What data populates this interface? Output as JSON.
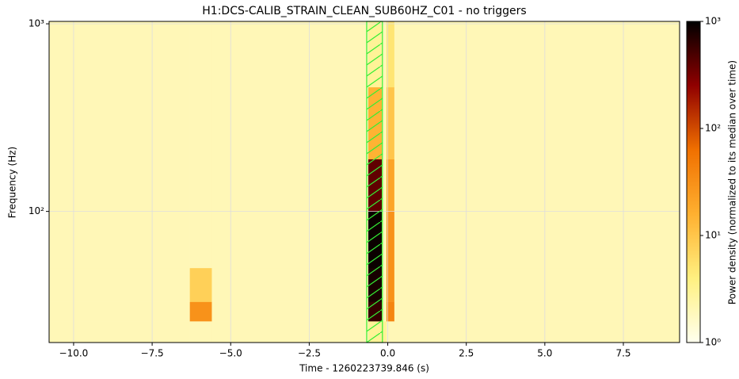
{
  "chart_data": {
    "type": "spectrogram",
    "title": "H1:DCS-CALIB_STRAIN_CLEAN_SUB60HZ_C01 - no triggers",
    "xlabel": "Time - 1260223739.846 (s)",
    "ylabel": "Frequency (Hz)",
    "colorbar_label": "Power density (normalized to its median over time)",
    "xlim": [
      -10.78,
      9.29
    ],
    "xticks": [
      {
        "value": -10,
        "label": "−10.0"
      },
      {
        "value": -7.5,
        "label": "−7.5"
      },
      {
        "value": -5,
        "label": "−5.0"
      },
      {
        "value": -2.5,
        "label": "−2.5"
      },
      {
        "value": 0,
        "label": "0.0"
      },
      {
        "value": 2.5,
        "label": "2.5"
      },
      {
        "value": 5,
        "label": "5.0"
      },
      {
        "value": 7.5,
        "label": "7.5"
      }
    ],
    "ylim": [
      20,
      1030
    ],
    "yscale": "log",
    "yticks": [
      {
        "value": 100,
        "label": "10²"
      },
      {
        "value": 1000,
        "label": "10³"
      }
    ],
    "clim": [
      1,
      1000
    ],
    "cscale": "log",
    "cticks": [
      {
        "value": 1,
        "label": "10⁰"
      },
      {
        "value": 10,
        "label": "10¹"
      },
      {
        "value": 100,
        "label": "10²"
      },
      {
        "value": 1000,
        "label": "10³"
      }
    ],
    "colormap": [
      "#ffffee",
      "#fff080",
      "#ffb030",
      "#f07000",
      "#900000",
      "#000000"
    ],
    "grid": true,
    "x_edges": [
      -10.78,
      -6.3,
      -5.6,
      -0.62,
      -0.19,
      -0.04,
      0.21,
      9.29
    ],
    "y_edges": [
      20,
      26,
      33,
      50,
      100,
      190,
      460,
      1030
    ],
    "z": [
      [
        2,
        2,
        2,
        3,
        3,
        2,
        2
      ],
      [
        2,
        30,
        2,
        600,
        2,
        40,
        2
      ],
      [
        2,
        8,
        2,
        800,
        2,
        30,
        2
      ],
      [
        2,
        2,
        2,
        900,
        2,
        30,
        2
      ],
      [
        2,
        2,
        2,
        400,
        2,
        20,
        2
      ],
      [
        2,
        2,
        2,
        15,
        2,
        10,
        2
      ],
      [
        2,
        2,
        2,
        3,
        2,
        5,
        2
      ]
    ],
    "highlight": {
      "xlim": [
        -0.67,
        -0.17
      ],
      "color": "#33ee33"
    }
  }
}
